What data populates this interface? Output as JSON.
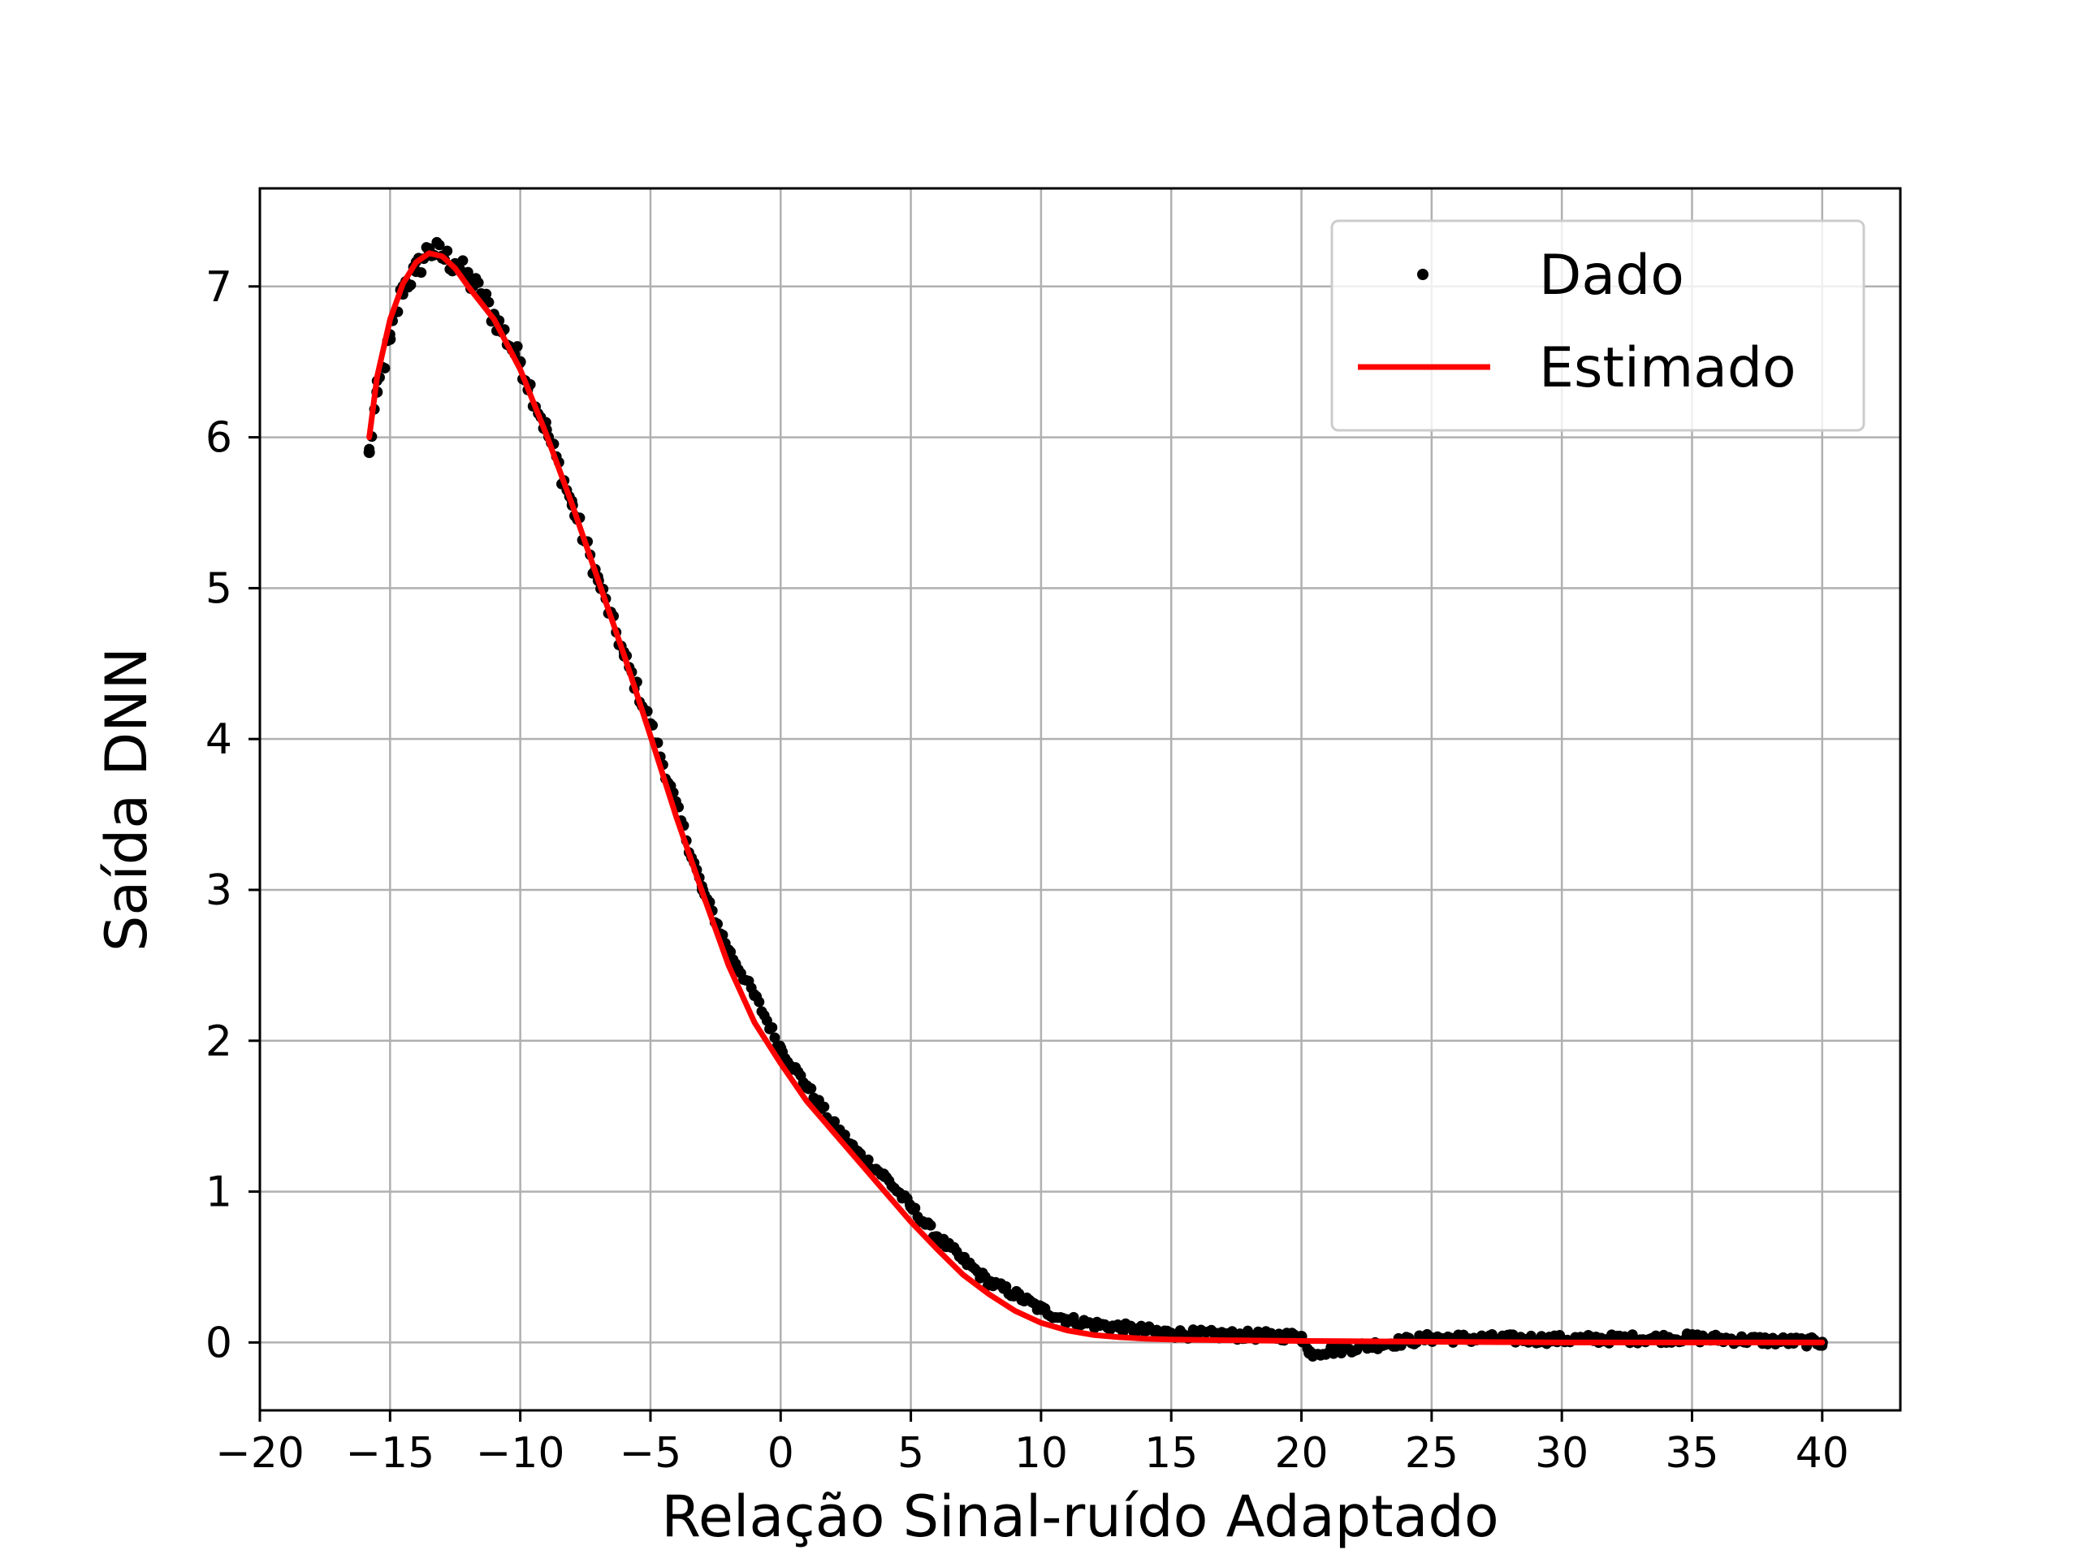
{
  "chart_data": {
    "type": "scatter",
    "title": "",
    "xlabel": "Relação Sinal-ruído Adaptado",
    "ylabel": "Saída DNN",
    "xlim": [
      -20,
      43
    ],
    "ylim": [
      -0.45,
      7.65
    ],
    "x_ticks": [
      -20,
      -15,
      -10,
      -5,
      0,
      5,
      10,
      15,
      20,
      25,
      30,
      35,
      40
    ],
    "x_tick_labels": [
      "−20",
      "−15",
      "−10",
      "−5",
      "0",
      "5",
      "10",
      "15",
      "20",
      "25",
      "30",
      "35",
      "40"
    ],
    "y_ticks": [
      0,
      1,
      2,
      3,
      4,
      5,
      6,
      7
    ],
    "y_tick_labels": [
      "0",
      "1",
      "2",
      "3",
      "4",
      "5",
      "6",
      "7"
    ],
    "grid": true,
    "legend_position": "top-right",
    "series": [
      {
        "name": "Dado",
        "kind": "scatter",
        "color": "#000000",
        "x_range": [
          -15.8,
          40
        ],
        "x": [
          -15.8,
          -15.5,
          -15,
          -14.5,
          -14,
          -13.5,
          -13,
          -12.5,
          -12,
          -11.5,
          -11,
          -10,
          -9,
          -8,
          -7,
          -6,
          -5,
          -4,
          -3,
          -2,
          -1,
          0,
          1,
          2,
          3,
          4,
          5,
          6,
          7,
          8,
          9,
          10,
          11,
          12,
          13,
          14,
          15,
          17,
          20,
          20.3,
          25,
          30,
          35,
          40
        ],
        "y": [
          5.9,
          6.3,
          6.65,
          7.0,
          7.1,
          7.25,
          7.2,
          7.15,
          7.05,
          6.95,
          6.8,
          6.5,
          6.05,
          5.55,
          5.05,
          4.55,
          4.1,
          3.55,
          3.0,
          2.6,
          2.3,
          1.95,
          1.7,
          1.45,
          1.25,
          1.1,
          0.9,
          0.7,
          0.55,
          0.4,
          0.32,
          0.22,
          0.15,
          0.12,
          0.1,
          0.08,
          0.06,
          0.05,
          0.04,
          -0.07,
          0.03,
          0.02,
          0.03,
          0.0
        ]
      },
      {
        "name": "Estimado",
        "kind": "line",
        "color": "#ff0000",
        "x": [
          -15.8,
          -15.5,
          -15,
          -14.5,
          -14,
          -13.5,
          -13,
          -12.5,
          -12,
          -11,
          -10,
          -9,
          -8,
          -7,
          -6,
          -5,
          -4,
          -3,
          -2,
          -1,
          0,
          1,
          2,
          3,
          4,
          5,
          6,
          7,
          8,
          9,
          10,
          11,
          12,
          13,
          14,
          15,
          17,
          20,
          25,
          30,
          35,
          40
        ],
        "y": [
          6.0,
          6.4,
          6.78,
          7.02,
          7.16,
          7.22,
          7.2,
          7.12,
          7.0,
          6.78,
          6.45,
          6.02,
          5.55,
          5.05,
          4.55,
          4.02,
          3.48,
          2.98,
          2.5,
          2.12,
          1.85,
          1.6,
          1.4,
          1.2,
          1.0,
          0.8,
          0.62,
          0.45,
          0.32,
          0.21,
          0.13,
          0.08,
          0.05,
          0.035,
          0.025,
          0.02,
          0.015,
          0.01,
          0.005,
          0.0,
          0.0,
          0.0
        ]
      }
    ]
  }
}
